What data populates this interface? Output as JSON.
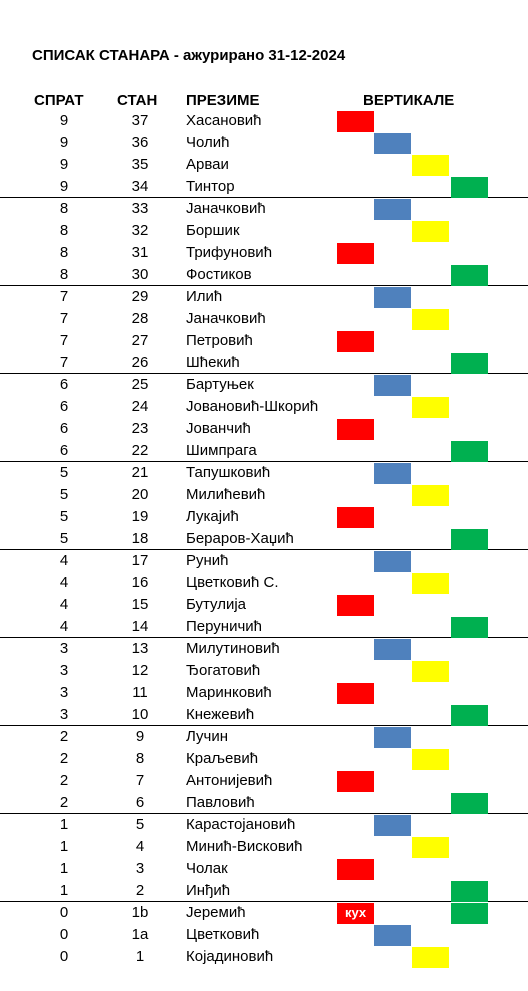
{
  "title": "СПИСАК СТАНАРА - ажурирано 31-12-2024",
  "headers": {
    "floor": "СПРАТ",
    "apartment": "СТАН",
    "surname": "ПРЕЗИМЕ",
    "verticals": "ВЕРТИКАЛЕ"
  },
  "colors": {
    "red": "#ff0000",
    "blue": "#4f81bd",
    "yellow": "#ffff00",
    "green": "#00b050"
  },
  "rows": [
    {
      "floor": "9",
      "apartment": "37",
      "surname": "Хасановић",
      "vertical": "red",
      "floor_end": false
    },
    {
      "floor": "9",
      "apartment": "36",
      "surname": "Чолић",
      "vertical": "blue",
      "floor_end": false
    },
    {
      "floor": "9",
      "apartment": "35",
      "surname": "Арваи",
      "vertical": "yellow",
      "floor_end": false
    },
    {
      "floor": "9",
      "apartment": "34",
      "surname": "Тинтор",
      "vertical": "green",
      "floor_end": true
    },
    {
      "floor": "8",
      "apartment": "33",
      "surname": "Јаначковић",
      "vertical": "blue",
      "floor_end": false
    },
    {
      "floor": "8",
      "apartment": "32",
      "surname": "Боршик",
      "vertical": "yellow",
      "floor_end": false
    },
    {
      "floor": "8",
      "apartment": "31",
      "surname": "Трифуновић",
      "vertical": "red",
      "floor_end": false
    },
    {
      "floor": "8",
      "apartment": "30",
      "surname": "Фостиков",
      "vertical": "green",
      "floor_end": true
    },
    {
      "floor": "7",
      "apartment": "29",
      "surname": "Илић",
      "vertical": "blue",
      "floor_end": false
    },
    {
      "floor": "7",
      "apartment": "28",
      "surname": "Јаначковић",
      "vertical": "yellow",
      "floor_end": false
    },
    {
      "floor": "7",
      "apartment": "27",
      "surname": "Петровић",
      "vertical": "red",
      "floor_end": false
    },
    {
      "floor": "7",
      "apartment": "26",
      "surname": "Шћекић",
      "vertical": "green",
      "floor_end": true
    },
    {
      "floor": "6",
      "apartment": "25",
      "surname": "Бартуњек",
      "vertical": "blue",
      "floor_end": false
    },
    {
      "floor": "6",
      "apartment": "24",
      "surname": "Јовановић-Шкорић",
      "vertical": "yellow",
      "floor_end": false
    },
    {
      "floor": "6",
      "apartment": "23",
      "surname": "Јованчић",
      "vertical": "red",
      "floor_end": false
    },
    {
      "floor": "6",
      "apartment": "22",
      "surname": "Шимпрага",
      "vertical": "green",
      "floor_end": true
    },
    {
      "floor": "5",
      "apartment": "21",
      "surname": "Тапушковић",
      "vertical": "blue",
      "floor_end": false
    },
    {
      "floor": "5",
      "apartment": "20",
      "surname": "Милићевић",
      "vertical": "yellow",
      "floor_end": false
    },
    {
      "floor": "5",
      "apartment": "19",
      "surname": "Лукајић",
      "vertical": "red",
      "floor_end": false
    },
    {
      "floor": "5",
      "apartment": "18",
      "surname": "Бераров-Хаџић",
      "vertical": "green",
      "floor_end": true
    },
    {
      "floor": "4",
      "apartment": "17",
      "surname": "Рунић",
      "vertical": "blue",
      "floor_end": false
    },
    {
      "floor": "4",
      "apartment": "16",
      "surname": "Цветковић С.",
      "vertical": "yellow",
      "floor_end": false
    },
    {
      "floor": "4",
      "apartment": "15",
      "surname": "Бутулија",
      "vertical": "red",
      "floor_end": false
    },
    {
      "floor": "4",
      "apartment": "14",
      "surname": "Перуничић",
      "vertical": "green",
      "floor_end": true
    },
    {
      "floor": "3",
      "apartment": "13",
      "surname": "Милутиновић",
      "vertical": "blue",
      "floor_end": false
    },
    {
      "floor": "3",
      "apartment": "12",
      "surname": "Ђогатовић",
      "vertical": "yellow",
      "floor_end": false
    },
    {
      "floor": "3",
      "apartment": "11",
      "surname": "Маринковић",
      "vertical": "red",
      "floor_end": false
    },
    {
      "floor": "3",
      "apartment": "10",
      "surname": "Кнежевић",
      "vertical": "green",
      "floor_end": true
    },
    {
      "floor": "2",
      "apartment": "9",
      "surname": "Лучин",
      "vertical": "blue",
      "floor_end": false
    },
    {
      "floor": "2",
      "apartment": "8",
      "surname": "Краљевић",
      "vertical": "yellow",
      "floor_end": false
    },
    {
      "floor": "2",
      "apartment": "7",
      "surname": "Антонијевић",
      "vertical": "red",
      "floor_end": false
    },
    {
      "floor": "2",
      "apartment": "6",
      "surname": "Павловић",
      "vertical": "green",
      "floor_end": true
    },
    {
      "floor": "1",
      "apartment": "5",
      "surname": "Карастојановић",
      "vertical": "blue",
      "floor_end": false
    },
    {
      "floor": "1",
      "apartment": "4",
      "surname": "Минић-Висковић",
      "vertical": "yellow",
      "floor_end": false
    },
    {
      "floor": "1",
      "apartment": "3",
      "surname": "Чолак",
      "vertical": "red",
      "floor_end": false
    },
    {
      "floor": "1",
      "apartment": "2",
      "surname": "Инђић",
      "vertical": "green",
      "floor_end": true
    },
    {
      "floor": "0",
      "apartment": "1b",
      "surname": "Јеремић",
      "vertical": "green",
      "extra_label": "кух",
      "floor_end": false
    },
    {
      "floor": "0",
      "apartment": "1a",
      "surname": "Цветковић",
      "vertical": "blue",
      "floor_end": false
    },
    {
      "floor": "0",
      "apartment": "1",
      "surname": "Којадиновић",
      "vertical": "yellow",
      "floor_end": false
    }
  ]
}
